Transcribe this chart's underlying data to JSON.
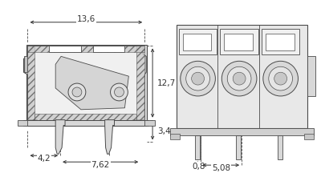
{
  "bg_color": "#ffffff",
  "line_color": "#4a4a4a",
  "fill_light": "#d0d0d0",
  "fill_hatch": "#c0c0c0",
  "dim_color": "#333333",
  "dim1_text": "13,6",
  "dim2_text": "12,7",
  "dim3_text": "3,4",
  "dim4_text": "4,2",
  "dim5_text": "7,62",
  "dim6_text": "0,8",
  "dim7_text": "5,08",
  "figsize": [
    4.0,
    2.16
  ],
  "dpi": 100
}
